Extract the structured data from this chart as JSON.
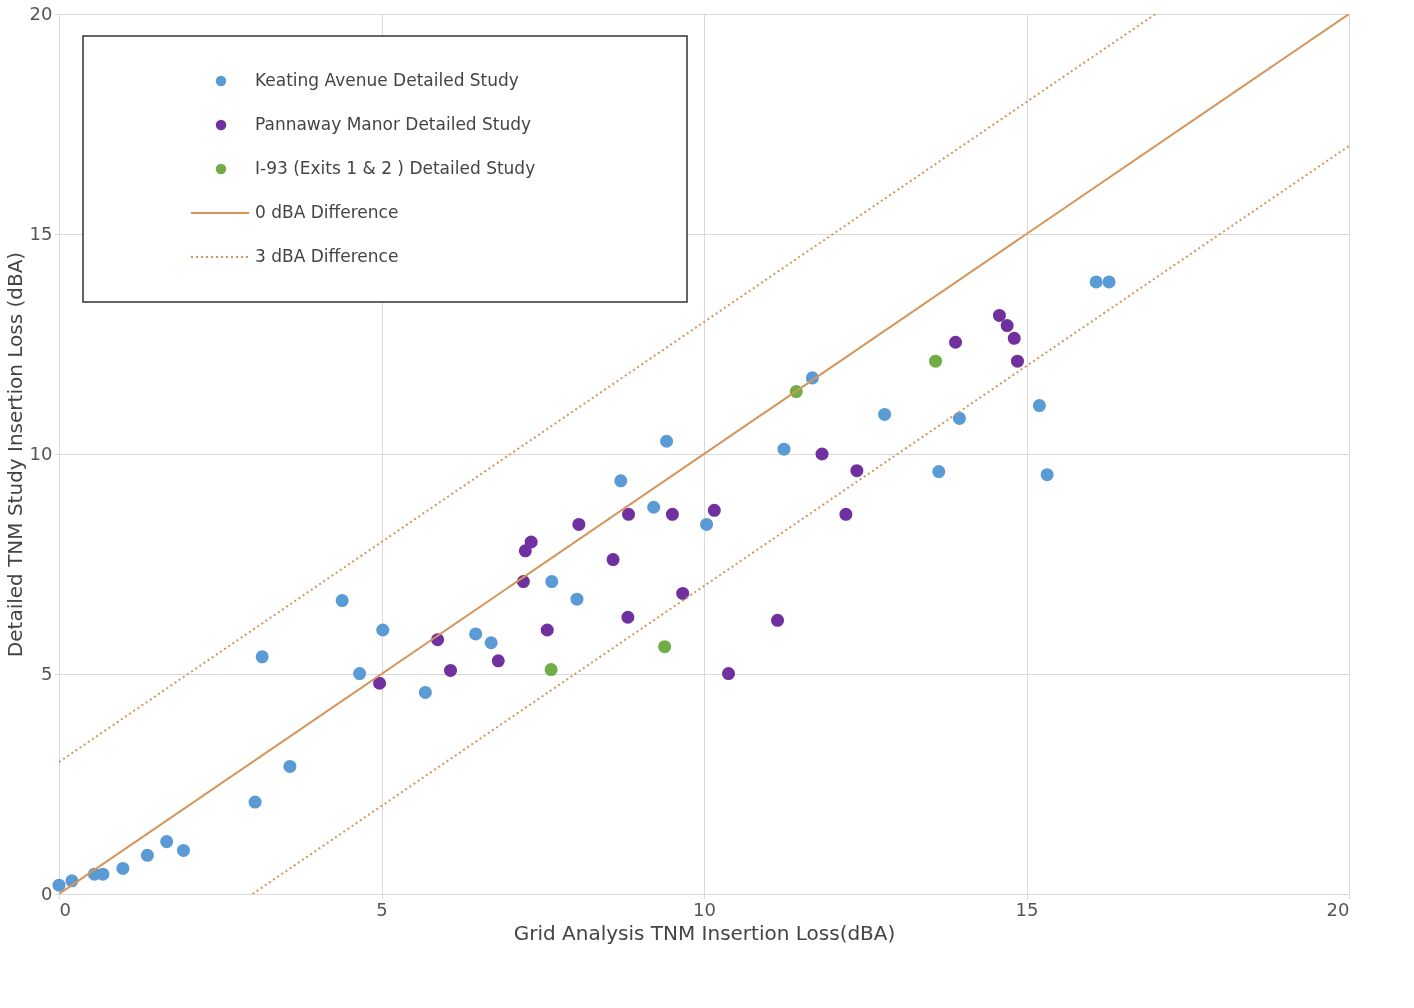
{
  "chart_data": {
    "type": "scatter",
    "xlabel": "Grid Analysis TNM Insertion Loss(dBA)",
    "ylabel": "Detailed TNM Study Insertion Loss (dBA)",
    "xlim": [
      0,
      20
    ],
    "ylim": [
      0,
      20
    ],
    "xticks": [
      0,
      5,
      10,
      15,
      20
    ],
    "yticks": [
      0,
      5,
      10,
      15,
      20
    ],
    "grid": true,
    "legend": "top left",
    "series": [
      {
        "name": "Keating Avenue Detailed Study",
        "color": "#5b9bd5",
        "x": [
          0,
          0.2,
          0.55,
          0.68,
          0.99,
          1.37,
          1.67,
          1.93,
          3.04,
          3.58,
          3.15,
          4.39,
          4.66,
          5.02,
          5.68,
          6.46,
          6.7,
          7.64,
          8.03,
          8.71,
          9.22,
          9.42,
          10.04,
          11.24,
          11.68,
          12.8,
          13.64,
          13.96,
          15.2,
          15.32,
          16.08,
          16.28
        ],
        "values": [
          0.2,
          0.3,
          0.45,
          0.45,
          0.58,
          0.88,
          1.19,
          0.99,
          2.09,
          2.9,
          5.39,
          6.67,
          5.01,
          6.0,
          4.58,
          5.91,
          5.71,
          7.1,
          6.7,
          9.39,
          8.79,
          10.29,
          8.4,
          10.11,
          11.73,
          10.9,
          9.6,
          10.81,
          11.1,
          9.53,
          13.91,
          13.91
        ]
      },
      {
        "name": "Pannaway Manor Detailed Study",
        "color": "#7030a0",
        "x": [
          4.97,
          5.87,
          6.07,
          6.81,
          7.2,
          7.23,
          7.32,
          7.57,
          8.06,
          8.59,
          8.82,
          8.83,
          9.51,
          9.67,
          10.16,
          10.38,
          11.14,
          11.83,
          12.37,
          12.2,
          13.9,
          14.58,
          14.7,
          14.81,
          14.86
        ],
        "values": [
          4.79,
          5.78,
          5.08,
          5.3,
          7.1,
          7.8,
          8.0,
          6.0,
          8.4,
          7.6,
          6.29,
          8.63,
          8.63,
          6.83,
          8.72,
          5.01,
          6.22,
          10.0,
          9.62,
          8.63,
          12.54,
          13.15,
          12.92,
          12.63,
          12.11
        ]
      },
      {
        "name": "I-93 (Exits 1 & 2 ) Detailed Study",
        "color": "#70ad47",
        "x": [
          7.63,
          9.39,
          11.43,
          13.59
        ],
        "values": [
          5.1,
          5.62,
          11.42,
          12.11
        ]
      },
      {
        "name": "0 dBA Difference",
        "type": "line",
        "line_style": "solid",
        "color": "#d4955a",
        "x": [
          0,
          20
        ],
        "values": [
          0,
          20
        ]
      },
      {
        "name": "3 dBA Difference",
        "type": "line",
        "line_style": "dotted",
        "color": "#d4955a",
        "x": [
          0,
          17
        ],
        "values": [
          3,
          20
        ]
      },
      {
        "type": "line",
        "line_style": "dotted",
        "color": "#d4955a",
        "x": [
          3,
          20
        ],
        "values": [
          0,
          17
        ]
      }
    ]
  }
}
